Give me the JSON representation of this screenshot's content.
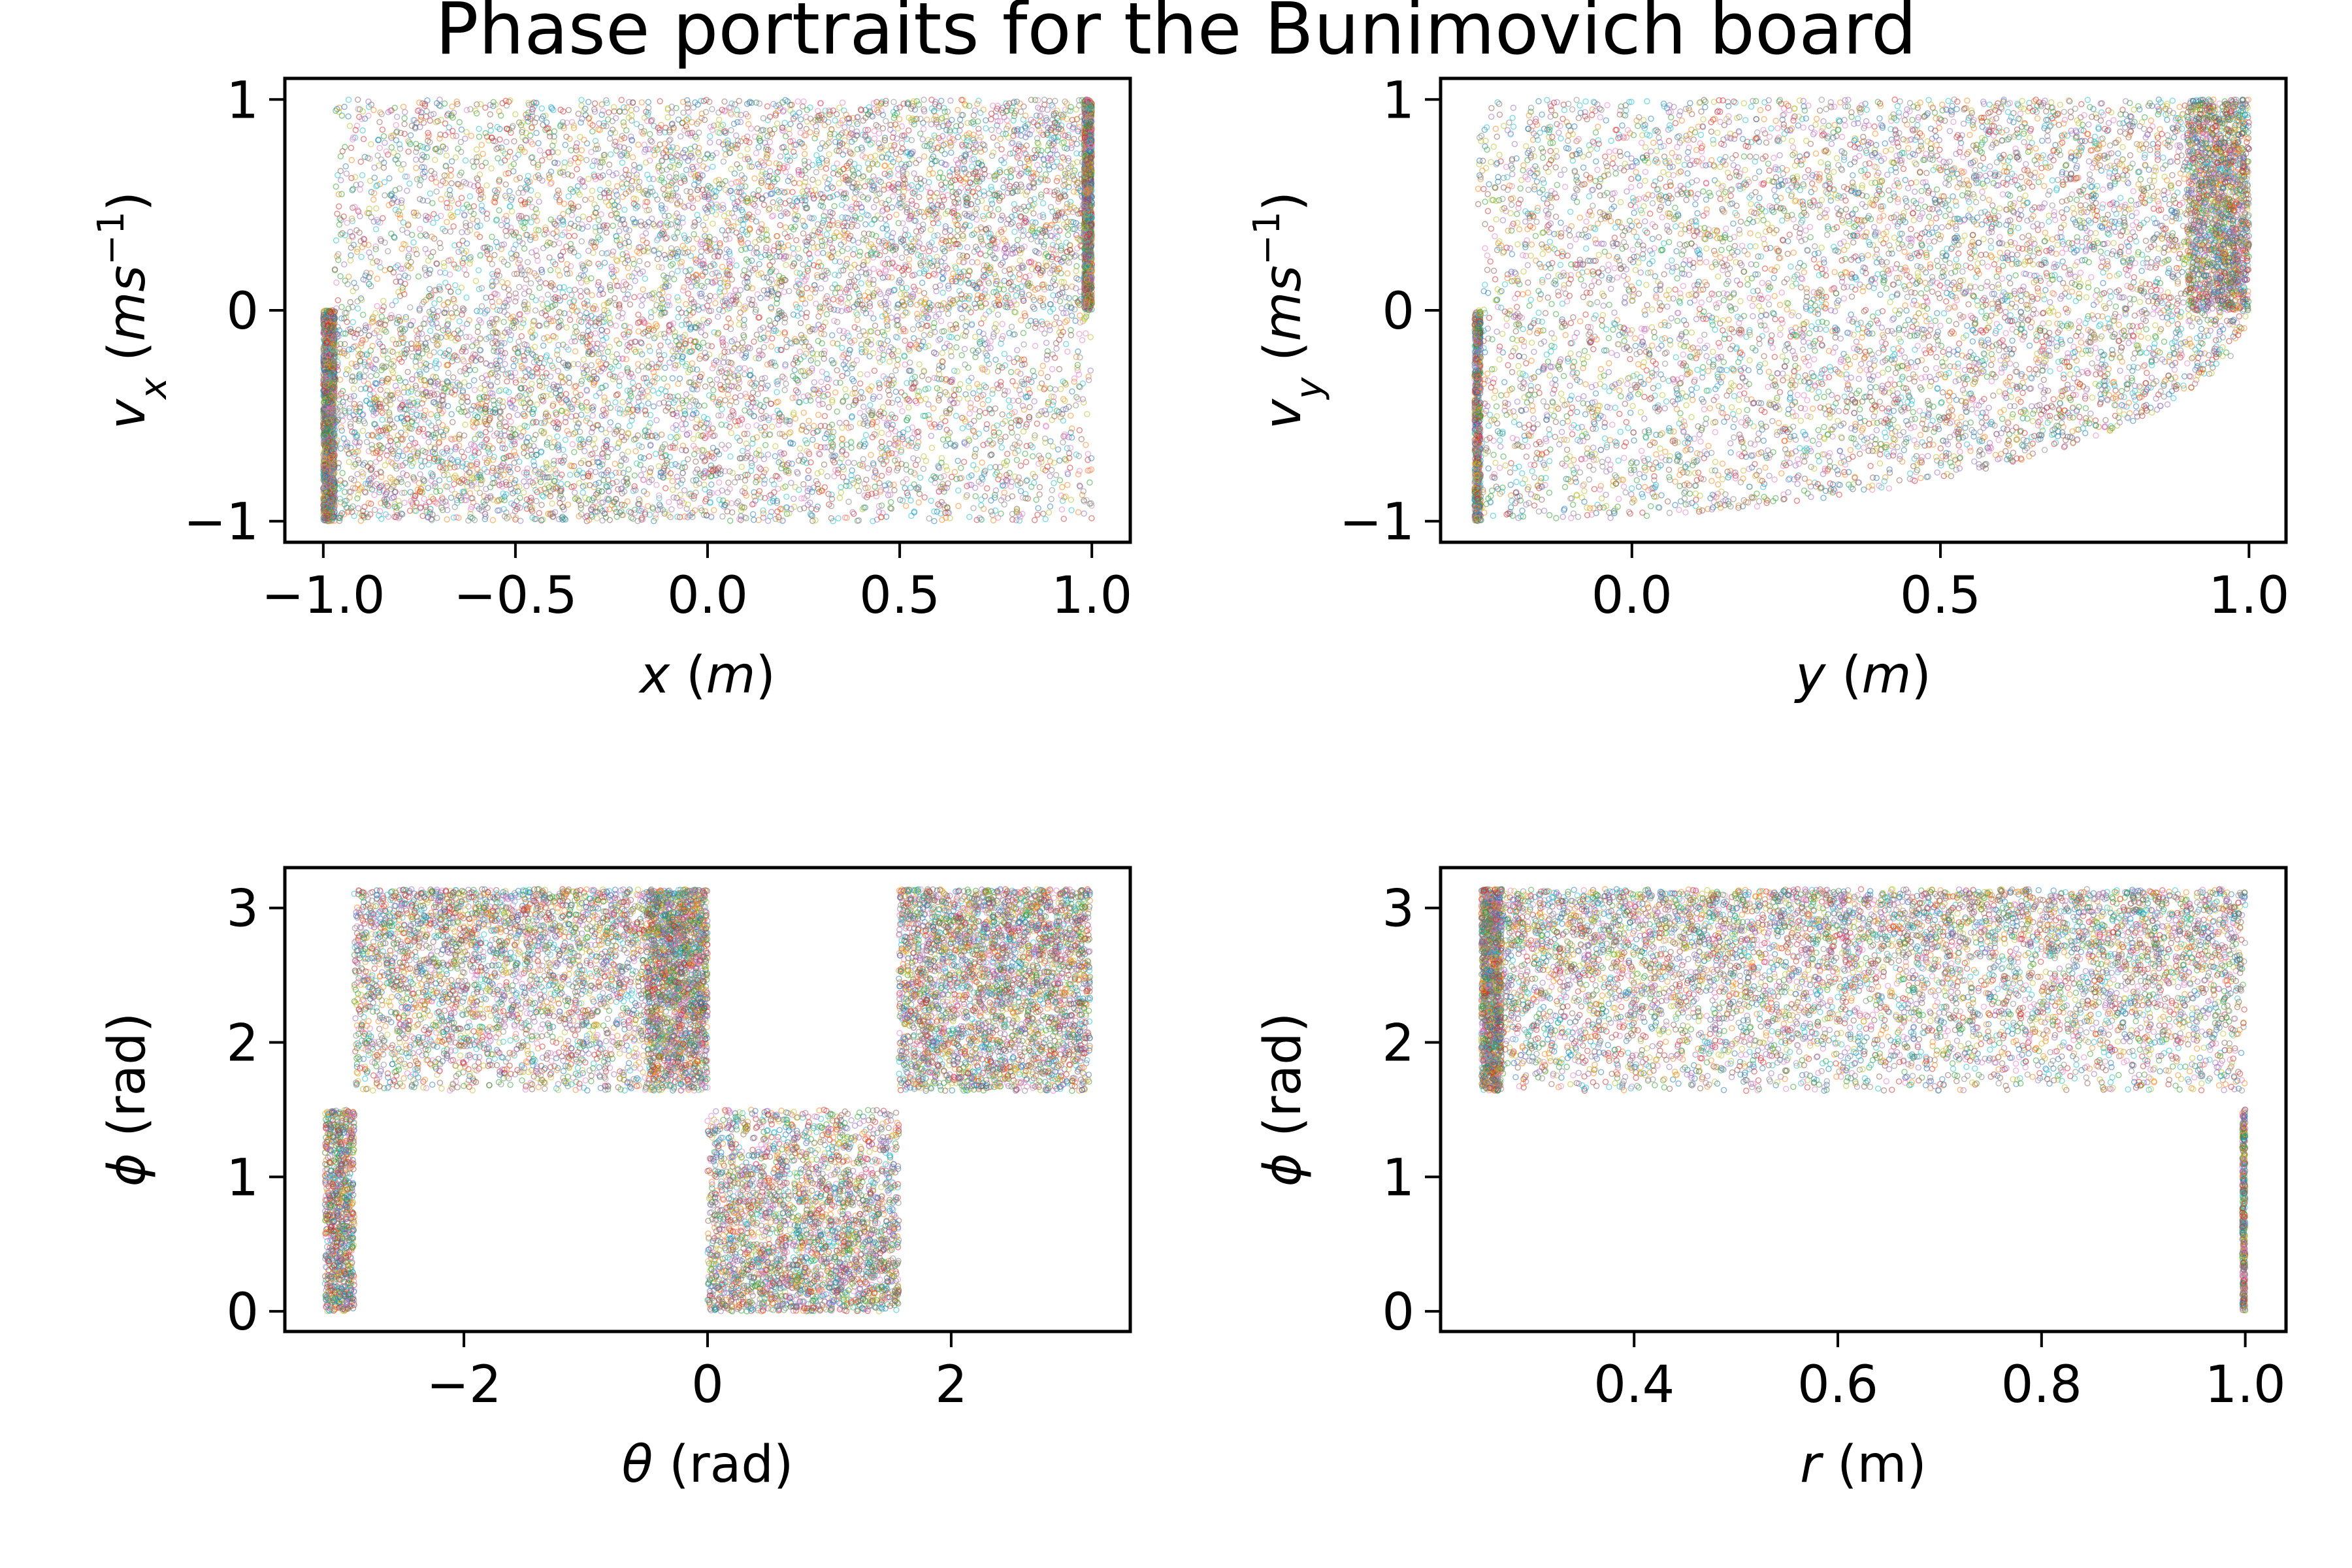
{
  "figure": {
    "title": "Phase portraits for the Bunimovich board"
  },
  "palette": [
    "#1f77b4",
    "#ff7f0e",
    "#2ca02c",
    "#d62728",
    "#9467bd",
    "#8c564b",
    "#e377c2",
    "#7f7f7f",
    "#bcbd22",
    "#17becf"
  ],
  "chart_data": [
    {
      "type": "scatter",
      "id": "x-vx",
      "xlabel": {
        "var": "x",
        "unit": "m"
      },
      "ylabel": {
        "var": "v",
        "sub": "x",
        "unit_base": "ms",
        "unit_sup": "−1"
      },
      "xlim": [
        -1.1,
        1.1
      ],
      "ylim": [
        -1.1,
        1.1
      ],
      "xticks": [
        -1.0,
        -0.5,
        0.0,
        0.5,
        1.0
      ],
      "xtick_labels": [
        "−1.0",
        "−0.5",
        "0.0",
        "0.5",
        "1.0"
      ],
      "yticks": [
        -1,
        0,
        1
      ],
      "ytick_labels": [
        "−1",
        "0",
        "1"
      ],
      "regions": [
        {
          "x": [
            -1.0,
            1.0
          ],
          "y": [
            -1.0,
            0.0
          ],
          "density": [
            1.0,
            0.45
          ],
          "axis": "x",
          "weight": 1.2
        },
        {
          "x": [
            -0.97,
            1.0
          ],
          "y": [
            0.0,
            1.0
          ],
          "density": [
            0.45,
            1.0
          ],
          "axis": "x",
          "weight": 1.2
        },
        {
          "x": [
            -1.0,
            -0.97
          ],
          "y": [
            -1.0,
            0.0
          ],
          "density": [
            1.0,
            1.0
          ],
          "axis": "x",
          "weight": 0.3
        },
        {
          "x": [
            0.98,
            1.0
          ],
          "y": [
            0.0,
            1.0
          ],
          "density": [
            1.0,
            1.0
          ],
          "axis": "x",
          "weight": 0.3
        }
      ]
    },
    {
      "type": "scatter",
      "id": "y-vy",
      "xlabel": {
        "var": "y",
        "unit": "m"
      },
      "ylabel": {
        "var": "v",
        "sub": "y",
        "unit_base": "ms",
        "unit_sup": "−1"
      },
      "xlim": [
        -0.31,
        1.06
      ],
      "ylim": [
        -1.1,
        1.1
      ],
      "xticks": [
        0.0,
        0.5,
        1.0
      ],
      "xtick_labels": [
        "0.0",
        "0.5",
        "1.0"
      ],
      "yticks": [
        -1,
        0,
        1
      ],
      "ytick_labels": [
        "−1",
        "0",
        "1"
      ],
      "regions": [
        {
          "x": [
            -0.25,
            1.0
          ],
          "y": [
            -1.0,
            1.0
          ],
          "density": [
            0.5,
            1.0
          ],
          "axis": "x",
          "shape": "curved-lower",
          "weight": 2.0
        },
        {
          "x": [
            0.9,
            1.0
          ],
          "y": [
            0.0,
            1.0
          ],
          "density": [
            1.0,
            1.0
          ],
          "axis": "x",
          "weight": 0.3
        },
        {
          "x": [
            -0.255,
            -0.245
          ],
          "y": [
            -1.0,
            0.0
          ],
          "density": [
            1.0,
            1.0
          ],
          "axis": "x",
          "weight": 0.15
        }
      ]
    },
    {
      "type": "scatter",
      "id": "theta-phi",
      "xlabel": {
        "var": "θ",
        "unit": "rad"
      },
      "ylabel": {
        "var": "ϕ",
        "unit": "rad"
      },
      "xlim": [
        -3.47,
        3.47
      ],
      "ylim": [
        -0.15,
        3.3
      ],
      "xticks": [
        -2,
        0,
        2
      ],
      "xtick_labels": [
        "−2",
        "0",
        "2"
      ],
      "yticks": [
        0,
        1,
        2,
        3
      ],
      "ytick_labels": [
        "0",
        "1",
        "2",
        "3"
      ],
      "regions": [
        {
          "x": [
            -3.14,
            -2.9
          ],
          "y": [
            0.0,
            1.5
          ],
          "density": [
            1.0,
            1.0
          ],
          "axis": "y",
          "weight": 0.2
        },
        {
          "x": [
            -2.9,
            0.0
          ],
          "y": [
            1.64,
            3.14
          ],
          "density": [
            0.4,
            1.0
          ],
          "axis": "y",
          "weight": 1.1
        },
        {
          "x": [
            -0.5,
            0.0
          ],
          "y": [
            1.64,
            3.14
          ],
          "density": [
            0.6,
            1.0
          ],
          "axis": "y",
          "weight": 0.35
        },
        {
          "x": [
            0.0,
            1.57
          ],
          "y": [
            0.0,
            1.5
          ],
          "density": [
            1.0,
            0.4
          ],
          "axis": "y",
          "weight": 0.8
        },
        {
          "x": [
            1.57,
            3.14
          ],
          "y": [
            1.64,
            3.14
          ],
          "density": [
            0.7,
            1.0
          ],
          "axis": "y",
          "weight": 0.8
        }
      ]
    },
    {
      "type": "scatter",
      "id": "r-phi",
      "xlabel": {
        "var": "r",
        "unit": "m"
      },
      "ylabel": {
        "var": "ϕ",
        "unit": "rad"
      },
      "xlim": [
        0.21,
        1.04
      ],
      "ylim": [
        -0.15,
        3.3
      ],
      "xticks": [
        0.4,
        0.6,
        0.8,
        1.0
      ],
      "xtick_labels": [
        "0.4",
        "0.6",
        "0.8",
        "1.0"
      ],
      "yticks": [
        0,
        1,
        2,
        3
      ],
      "ytick_labels": [
        "0",
        "1",
        "2",
        "3"
      ],
      "regions": [
        {
          "x": [
            0.25,
            1.0
          ],
          "y": [
            1.64,
            3.14
          ],
          "density": [
            0.3,
            1.0
          ],
          "axis": "y",
          "weight": 2.0
        },
        {
          "x": [
            0.25,
            0.27
          ],
          "y": [
            1.64,
            3.14
          ],
          "density": [
            1.0,
            1.0
          ],
          "axis": "y",
          "weight": 0.25
        },
        {
          "x": [
            0.997,
            1.0
          ],
          "y": [
            0.0,
            1.5
          ],
          "density": [
            1.0,
            1.0
          ],
          "axis": "y",
          "weight": 0.08
        }
      ]
    }
  ]
}
